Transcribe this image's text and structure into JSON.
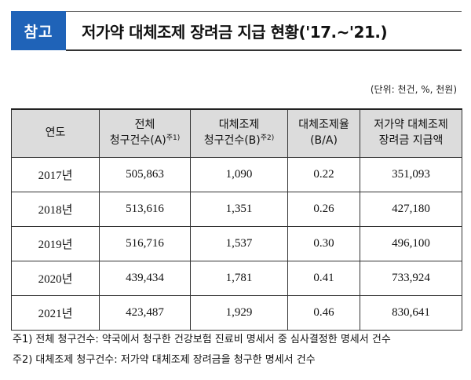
{
  "header": {
    "badge": "참고",
    "title": "저가약 대체조제 장려금 지급 현황('17.~'21.)"
  },
  "unit": "(단위: 천건, %, 천원)",
  "table": {
    "headers": [
      {
        "line1": "연도",
        "line2": "",
        "sup": ""
      },
      {
        "line1": "전체",
        "line2": "청구건수(A)",
        "sup": "주1)"
      },
      {
        "line1": "대체조제",
        "line2": "청구건수(B)",
        "sup": "주2)"
      },
      {
        "line1": "대체조제율",
        "line2": "(B/A)",
        "sup": ""
      },
      {
        "line1": "저가약 대체조제",
        "line2": "장려금 지급액",
        "sup": ""
      }
    ],
    "rows": [
      [
        "2017년",
        "505,863",
        "1,090",
        "0.22",
        "351,093"
      ],
      [
        "2018년",
        "513,616",
        "1,351",
        "0.26",
        "427,180"
      ],
      [
        "2019년",
        "516,716",
        "1,537",
        "0.30",
        "496,100"
      ],
      [
        "2020년",
        "439,434",
        "1,781",
        "0.41",
        "733,924"
      ],
      [
        "2021년",
        "423,487",
        "1,929",
        "0.46",
        "830,641"
      ]
    ]
  },
  "notes": [
    "주1) 전체 청구건수: 약국에서 청구한 건강보험 진료비 명세서 중 심사결정한 명세서 건수",
    "주2) 대체조제 청구건수: 저가약 대체조제 장려금을 청구한 명세서 건수"
  ]
}
